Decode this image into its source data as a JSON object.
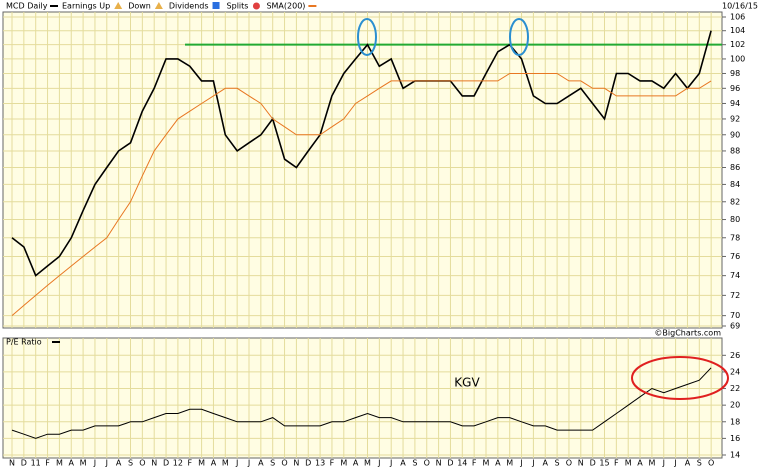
{
  "chart_data": [
    {
      "type": "line",
      "title": "MCD Daily",
      "date": "10/16/15",
      "log": true,
      "grid": true,
      "legend_markers": [
        "Earnings Up",
        "Down",
        "Dividends",
        "Splits"
      ],
      "source": "©BigCharts.com",
      "reference_line": {
        "value": 102,
        "color": "#22aa33"
      },
      "ylim": [
        69,
        106
      ],
      "yticks": [
        69,
        70,
        72,
        74,
        76,
        78,
        80,
        82,
        84,
        86,
        88,
        90,
        92,
        94,
        96,
        98,
        100,
        102,
        104,
        106
      ],
      "series": [
        {
          "name": "MCD Daily",
          "color": "#000000",
          "values": [
            78,
            77,
            74,
            75,
            76,
            78,
            81,
            84,
            86,
            88,
            89,
            93,
            96,
            100,
            100,
            99,
            97,
            97,
            90,
            88,
            89,
            90,
            92,
            87,
            86,
            88,
            90,
            95,
            98,
            100,
            102,
            99,
            100,
            96,
            97,
            97,
            97,
            97,
            95,
            95,
            98,
            101,
            102,
            100,
            95,
            94,
            94,
            95,
            96,
            94,
            92,
            98,
            98,
            97,
            97,
            96,
            98,
            96,
            98,
            104
          ]
        },
        {
          "name": "SMA(200)",
          "color": "#e87722",
          "values": [
            70,
            71,
            72,
            73,
            74,
            75,
            76,
            77,
            78,
            80,
            82,
            85,
            88,
            90,
            92,
            93,
            94,
            95,
            96,
            96,
            95,
            94,
            92,
            91,
            90,
            90,
            90,
            91,
            92,
            94,
            95,
            96,
            97,
            97,
            97,
            97,
            97,
            97,
            97,
            97,
            97,
            97,
            98,
            98,
            98,
            98,
            98,
            97,
            97,
            96,
            96,
            95,
            95,
            95,
            95,
            95,
            95,
            96,
            96,
            97
          ]
        }
      ]
    },
    {
      "type": "line",
      "title": "P/E Ratio",
      "grid": true,
      "annotation": "KGV",
      "categories": [
        "N",
        "D",
        "11",
        "F",
        "M",
        "A",
        "M",
        "J",
        "J",
        "A",
        "S",
        "O",
        "N",
        "D",
        "12",
        "F",
        "M",
        "A",
        "M",
        "J",
        "J",
        "A",
        "S",
        "O",
        "N",
        "D",
        "13",
        "F",
        "M",
        "A",
        "M",
        "J",
        "J",
        "A",
        "S",
        "O",
        "N",
        "D",
        "14",
        "F",
        "M",
        "A",
        "M",
        "J",
        "J",
        "A",
        "S",
        "O",
        "N",
        "D",
        "15",
        "F",
        "M",
        "A",
        "M",
        "J",
        "J",
        "A",
        "S",
        "O"
      ],
      "ylim": [
        14,
        27
      ],
      "yticks": [
        14,
        16,
        18,
        20,
        22,
        24,
        26
      ],
      "series": [
        {
          "name": "P/E Ratio",
          "color": "#000000",
          "values": [
            17,
            16.5,
            16,
            16.5,
            16.5,
            17,
            17,
            17.5,
            17.5,
            17.5,
            18,
            18,
            18.5,
            19,
            19,
            19.5,
            19.5,
            19,
            18.5,
            18,
            18,
            18,
            18.5,
            17.5,
            17.5,
            17.5,
            17.5,
            18,
            18,
            18.5,
            19,
            18.5,
            18.5,
            18,
            18,
            18,
            18,
            18,
            17.5,
            17.5,
            18,
            18.5,
            18.5,
            18,
            17.5,
            17.5,
            17,
            17,
            17,
            17,
            18,
            19,
            20,
            21,
            22,
            21.5,
            22,
            22.5,
            23,
            24.5
          ]
        }
      ]
    }
  ]
}
